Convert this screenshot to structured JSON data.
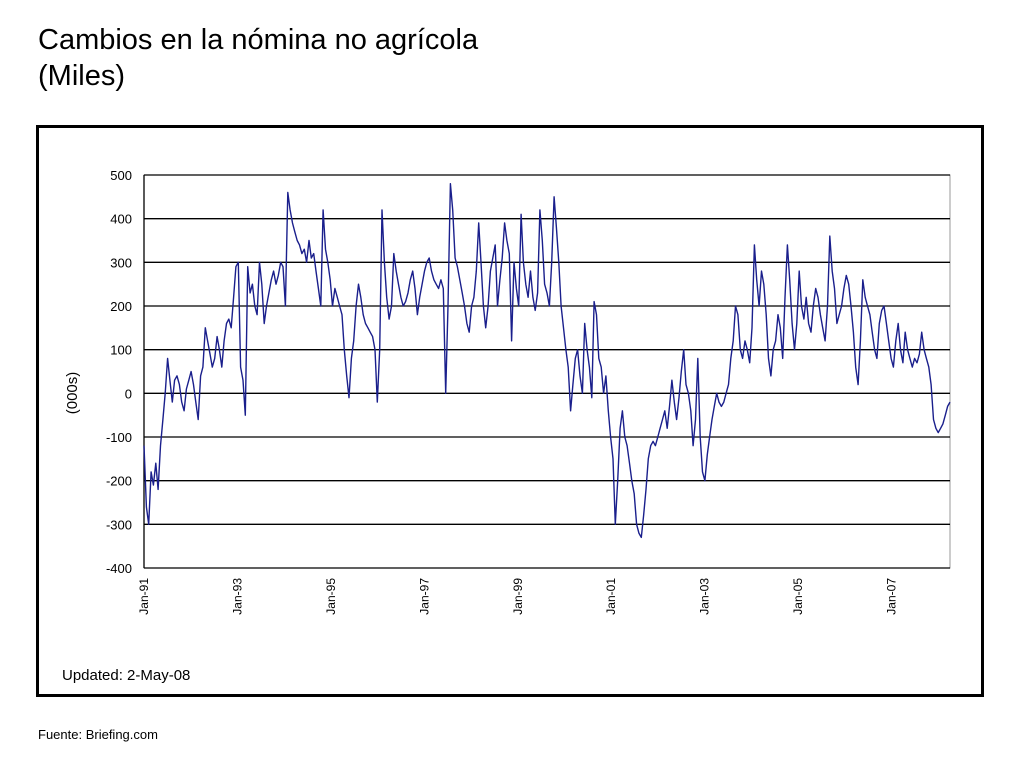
{
  "title_line1": "Cambios en la nómina no agrícola",
  "title_line2": "(Miles)",
  "updated_note": "Updated: 2-May-08",
  "source_note": "Fuente: Briefing.com",
  "chart_data": {
    "type": "line",
    "ylabel": "(000s)",
    "ylim": [
      -400,
      500
    ],
    "yticks": [
      500,
      400,
      300,
      200,
      100,
      0,
      -100,
      -200,
      -300,
      -400
    ],
    "xticks": [
      "Jan-91",
      "Jan-93",
      "Jan-95",
      "Jan-97",
      "Jan-99",
      "Jan-01",
      "Jan-03",
      "Jan-05",
      "Jan-07"
    ],
    "x_start": "Jan-91",
    "x_end": "Apr-08",
    "line_color": "#1a1f8c",
    "grid": "horizontal",
    "values": [
      -120,
      -260,
      -300,
      -180,
      -210,
      -160,
      -220,
      -120,
      -60,
      0,
      80,
      30,
      -20,
      30,
      40,
      20,
      -20,
      -40,
      10,
      30,
      50,
      20,
      -20,
      -60,
      40,
      60,
      150,
      120,
      90,
      60,
      80,
      130,
      100,
      60,
      120,
      160,
      170,
      150,
      220,
      290,
      300,
      60,
      30,
      -50,
      290,
      230,
      250,
      200,
      180,
      300,
      250,
      160,
      200,
      230,
      260,
      280,
      250,
      270,
      300,
      290,
      200,
      460,
      420,
      390,
      370,
      350,
      340,
      320,
      330,
      300,
      350,
      310,
      320,
      280,
      240,
      200,
      420,
      330,
      300,
      260,
      200,
      240,
      220,
      200,
      180,
      100,
      40,
      -10,
      80,
      120,
      200,
      250,
      220,
      180,
      160,
      150,
      140,
      130,
      100,
      -20,
      100,
      420,
      300,
      220,
      170,
      200,
      320,
      280,
      250,
      220,
      200,
      210,
      230,
      260,
      280,
      240,
      180,
      220,
      250,
      280,
      300,
      310,
      280,
      260,
      250,
      240,
      260,
      240,
      0,
      200,
      480,
      420,
      310,
      290,
      260,
      230,
      200,
      160,
      140,
      200,
      220,
      280,
      390,
      300,
      200,
      150,
      200,
      280,
      310,
      340,
      200,
      260,
      310,
      390,
      350,
      320,
      120,
      300,
      240,
      200,
      410,
      300,
      250,
      220,
      280,
      220,
      190,
      230,
      420,
      350,
      250,
      230,
      200,
      300,
      450,
      380,
      300,
      200,
      150,
      100,
      60,
      -40,
      20,
      80,
      100,
      40,
      0,
      160,
      100,
      60,
      -10,
      210,
      180,
      80,
      60,
      0,
      40,
      -40,
      -100,
      -150,
      -300,
      -200,
      -80,
      -40,
      -100,
      -120,
      -160,
      -200,
      -230,
      -300,
      -320,
      -330,
      -280,
      -220,
      -150,
      -120,
      -110,
      -120,
      -100,
      -80,
      -60,
      -40,
      -80,
      -30,
      30,
      -20,
      -60,
      -10,
      50,
      100,
      20,
      0,
      -40,
      -120,
      -60,
      80,
      -100,
      -180,
      -200,
      -140,
      -100,
      -60,
      -30,
      0,
      -20,
      -30,
      -20,
      0,
      20,
      80,
      120,
      200,
      180,
      100,
      80,
      120,
      100,
      70,
      150,
      340,
      260,
      200,
      280,
      250,
      180,
      80,
      40,
      100,
      120,
      180,
      150,
      80,
      220,
      340,
      260,
      160,
      100,
      160,
      280,
      200,
      170,
      220,
      160,
      140,
      200,
      240,
      220,
      180,
      150,
      120,
      200,
      360,
      280,
      240,
      160,
      180,
      200,
      240,
      270,
      250,
      200,
      140,
      60,
      20,
      120,
      260,
      220,
      200,
      180,
      140,
      100,
      80,
      160,
      190,
      200,
      160,
      120,
      80,
      60,
      120,
      160,
      100,
      70,
      140,
      100,
      80,
      60,
      80,
      70,
      90,
      140,
      100,
      80,
      60,
      20,
      -60,
      -80,
      -90,
      -80,
      -70,
      -50,
      -30,
      -20
    ]
  }
}
